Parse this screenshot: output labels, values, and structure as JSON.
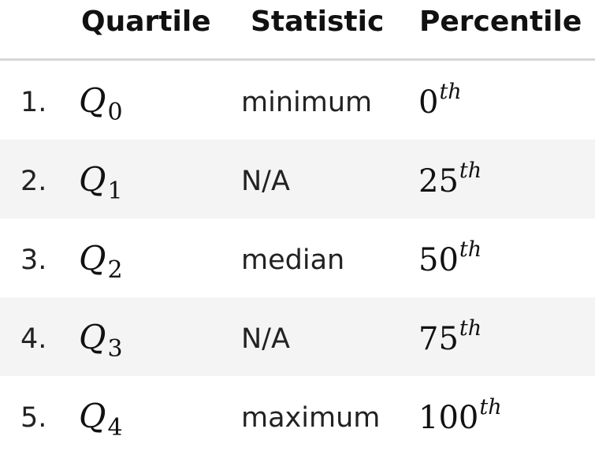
{
  "header": {
    "quartile": "Quartile",
    "statistic": "Statistic",
    "percentile": "Percentile"
  },
  "rows": [
    {
      "index": "1.",
      "symbol": "Q",
      "subscript": "0",
      "statistic": "minimum",
      "percentile": "0",
      "superscript": "th"
    },
    {
      "index": "2.",
      "symbol": "Q",
      "subscript": "1",
      "statistic": "N/A",
      "percentile": "25",
      "superscript": "th"
    },
    {
      "index": "3.",
      "symbol": "Q",
      "subscript": "2",
      "statistic": "median",
      "percentile": "50",
      "superscript": "th"
    },
    {
      "index": "4.",
      "symbol": "Q",
      "subscript": "3",
      "statistic": "N/A",
      "percentile": "75",
      "superscript": "th"
    },
    {
      "index": "5.",
      "symbol": "Q",
      "subscript": "4",
      "statistic": "maximum",
      "percentile": "100",
      "superscript": "th"
    }
  ],
  "colors": {
    "header_rule": "#d6d6d6",
    "shaded_row": "#f4f4f4"
  }
}
